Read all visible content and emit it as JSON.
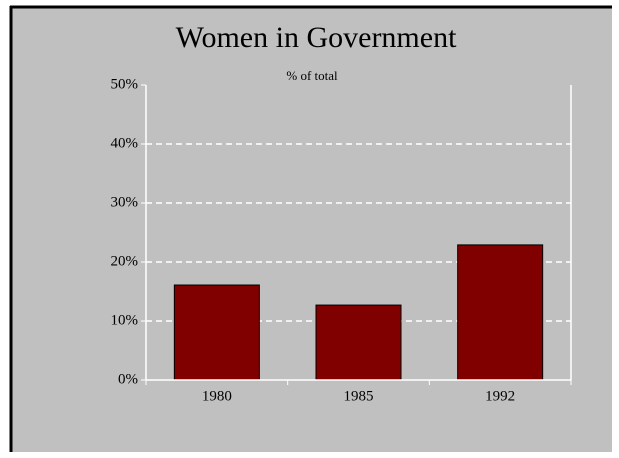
{
  "chart_data": {
    "type": "bar",
    "title": "Women in Government",
    "subtitle": "% of total",
    "categories": [
      "1980",
      "1985",
      "1992"
    ],
    "values": [
      16.1,
      12.7,
      22.9
    ],
    "color": "#800000",
    "ylim": [
      0,
      50
    ],
    "yticks": [
      {
        "value": 0,
        "label": "0%"
      },
      {
        "value": 10,
        "label": "10%"
      },
      {
        "value": 20,
        "label": "20%"
      },
      {
        "value": 30,
        "label": "30%"
      },
      {
        "value": 40,
        "label": "40%"
      },
      {
        "value": 50,
        "label": "50%"
      }
    ],
    "grid": true
  }
}
